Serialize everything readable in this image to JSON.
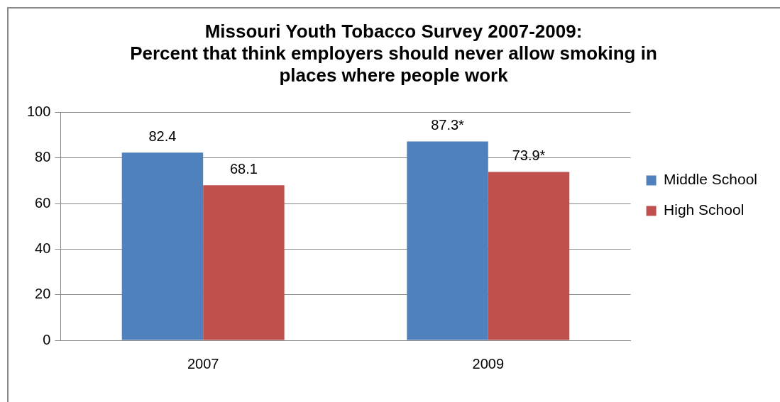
{
  "chart_data": {
    "type": "bar",
    "title": "Missouri Youth Tobacco Survey 2007-2009:\nPercent that think employers should never allow smoking in\nplaces where people work",
    "categories": [
      "2007",
      "2009"
    ],
    "series": [
      {
        "name": "Middle School",
        "color": "#4f81bd",
        "values": [
          82.4,
          87.3
        ],
        "value_labels": [
          "82.4",
          "87.3*"
        ]
      },
      {
        "name": "High School",
        "color": "#c0504d",
        "values": [
          68.1,
          73.9
        ],
        "value_labels": [
          "68.1",
          "73.9*"
        ]
      }
    ],
    "ylim": [
      0,
      100
    ],
    "yticks": [
      0,
      20,
      40,
      60,
      80,
      100
    ],
    "grid": "y",
    "legend": "right"
  }
}
